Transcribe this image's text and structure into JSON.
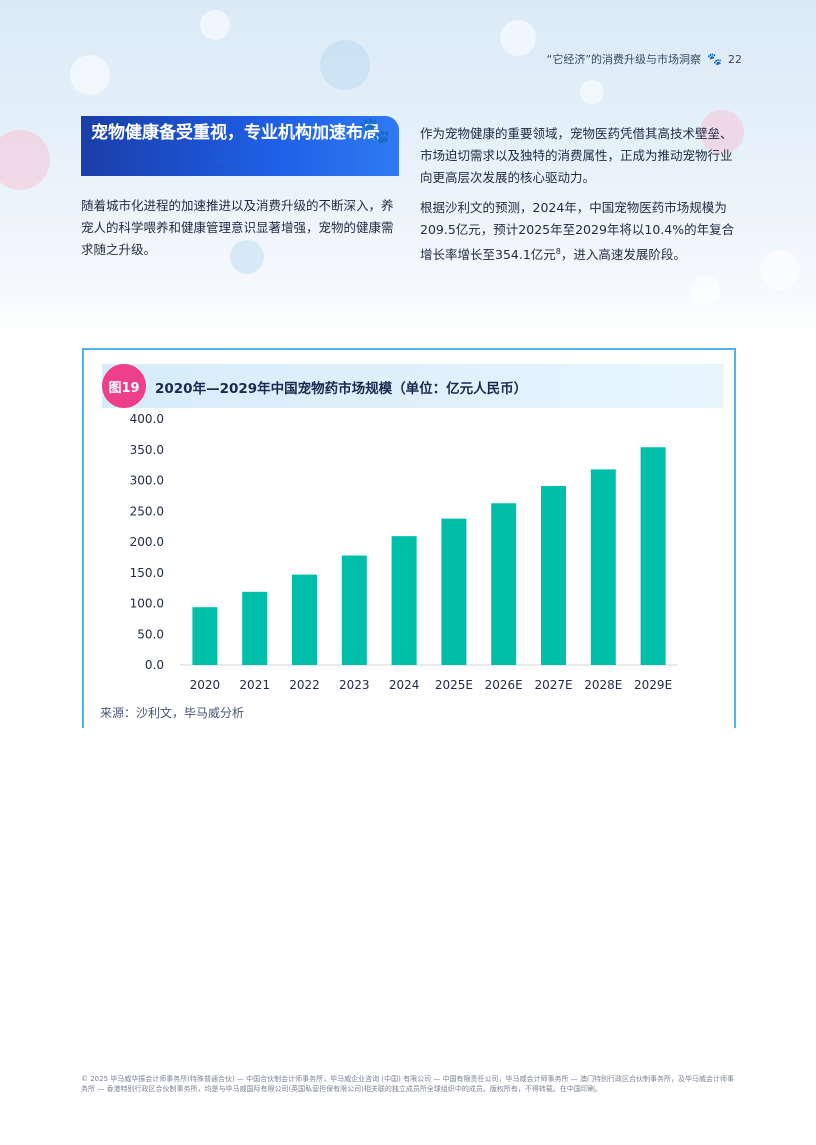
{
  "running_head": {
    "text": "“它经济”的消费升级与市场洞察",
    "page_number": "22"
  },
  "section_title": "宠物健康备受重视，专业机构加速布局",
  "left_paragraph": "随着城市化进程的加速推进以及消费升级的不断深入，养宠人的科学喂养和健康管理意识显著增强，宠物的健康需求随之升级。",
  "right_paragraph_1": "作为宠物健康的重要领域，宠物医药凭借其高技术壁垒、市场迫切需求以及独特的消费属性，正成为推动宠物行业向更高层次发展的核心驱动力。",
  "right_paragraph_2": {
    "before": "根据沙利文的预测，2024年，中国宠物医药市场规模为209.5亿元，预计2025年至2029年将以10.4%的年复合增长率增长至354.1亿元",
    "footnote": "8",
    "after": "，进入高速发展阶段。"
  },
  "figure": {
    "badge": "图19",
    "title": "2020年—2029年中国宠物药市场规模（单位：亿元人民币）",
    "source": "来源：沙利文，毕马威分析"
  },
  "chart_data": {
    "type": "bar",
    "title": "2020年—2029年中国宠物药市场规模（单位：亿元人民币）",
    "categories": [
      "2020",
      "2021",
      "2022",
      "2023",
      "2024",
      "2025E",
      "2026E",
      "2027E",
      "2028E",
      "2029E"
    ],
    "values": [
      94.0,
      119.0,
      147.0,
      178.0,
      209.5,
      238.0,
      263.0,
      291.0,
      318.0,
      354.1
    ],
    "y_ticks": [
      "0.0",
      "50.0",
      "100.0",
      "150.0",
      "200.0",
      "250.0",
      "300.0",
      "350.0",
      "400.0"
    ],
    "ylim": [
      0,
      400
    ],
    "grid": false,
    "bar_color": "#00bfa8"
  },
  "footer": "© 2025 毕马威华振会计师事务所(特殊普通合伙) — 中国合伙制会计师事务所，毕马威企业咨询 (中国) 有限公司 — 中国有限责任公司，毕马威会计师事务所 — 澳门特别行政区合伙制事务所，及毕马威会计师事务所 — 香港特别行政区合伙制事务所，均是与毕马威国际有限公司(英国私营担保有限公司)相关联的独立成员所全球组织中的成员。版权所有，不得转载。在中国印刷。"
}
